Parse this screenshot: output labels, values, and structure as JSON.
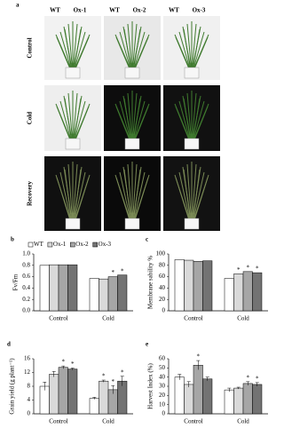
{
  "figure": {
    "panel": "a",
    "columns": [
      "WT",
      "Ox-1",
      "WT",
      "Ox-2",
      "WT",
      "Ox-3"
    ],
    "rows": [
      "Control",
      "Cold",
      "Recovery"
    ]
  },
  "chart_data": [
    {
      "type": "bar",
      "panel": "b",
      "ylabel": "Fv/Fm",
      "categories": [
        "Control",
        "Cold"
      ],
      "legend": "top",
      "ylim": [
        0,
        1
      ],
      "yticks": [
        {
          "value": 0,
          "label": "0.0"
        },
        0.2,
        0.4,
        0.6,
        0.8,
        {
          "value": 1,
          "label": "1.0"
        }
      ],
      "series": [
        {
          "name": "WT",
          "color": "#ffffff",
          "values": [
            0.8,
            0.57
          ],
          "annotations": [
            null,
            null
          ]
        },
        {
          "name": "Ox-1",
          "color": "#d9d9d9",
          "values": [
            0.81,
            0.56
          ],
          "annotations": [
            null,
            null
          ]
        },
        {
          "name": "Ox-2",
          "color": "#a6a6a6",
          "values": [
            0.81,
            0.6
          ],
          "annotations": [
            null,
            "*"
          ]
        },
        {
          "name": "Ox-3",
          "color": "#737373",
          "values": [
            0.81,
            0.63
          ],
          "annotations": [
            null,
            "*"
          ]
        }
      ]
    },
    {
      "type": "bar",
      "panel": "c",
      "ylabel": "Membrane sability %",
      "categories": [
        "Control",
        "Cold"
      ],
      "ylim": [
        0,
        100
      ],
      "yticks": [
        0,
        20,
        40,
        60,
        80,
        100
      ],
      "series": [
        {
          "name": "WT",
          "color": "#ffffff",
          "values": [
            90,
            57
          ],
          "annotations": [
            null,
            null
          ]
        },
        {
          "name": "Ox-1",
          "color": "#d9d9d9",
          "values": [
            89,
            65
          ],
          "annotations": [
            null,
            "*"
          ]
        },
        {
          "name": "Ox-2",
          "color": "#a6a6a6",
          "values": [
            87,
            69
          ],
          "annotations": [
            null,
            "*"
          ]
        },
        {
          "name": "Ox-3",
          "color": "#737373",
          "values": [
            88,
            67
          ],
          "annotations": [
            null,
            "*"
          ]
        }
      ]
    },
    {
      "type": "bar",
      "panel": "d",
      "ylabel": "Grain yield (g plant⁻¹)",
      "categories": [
        "Control",
        "Cold"
      ],
      "ylim": [
        0,
        16
      ],
      "yticks": [
        0,
        4,
        8,
        12,
        16
      ],
      "series": [
        {
          "name": "WT",
          "color": "#ffffff",
          "values": [
            8,
            4.5
          ],
          "errors": [
            1.2,
            0.3
          ],
          "annotations": [
            null,
            null
          ]
        },
        {
          "name": "Ox-1",
          "color": "#d9d9d9",
          "values": [
            11.5,
            9.5
          ],
          "errors": [
            0.8,
            0.3
          ],
          "annotations": [
            null,
            "*"
          ]
        },
        {
          "name": "Ox-2",
          "color": "#a6a6a6",
          "values": [
            13.5,
            7
          ],
          "errors": [
            0.4,
            1.2
          ],
          "annotations": [
            "*",
            "*"
          ]
        },
        {
          "name": "Ox-3",
          "color": "#737373",
          "values": [
            13,
            9.5
          ],
          "errors": [
            0.3,
            1.4
          ],
          "annotations": [
            "*",
            "*"
          ]
        }
      ]
    },
    {
      "type": "bar",
      "panel": "e",
      "ylabel": "Harvest Index (%)",
      "categories": [
        "Control",
        "Cold"
      ],
      "ylim": [
        0,
        60
      ],
      "yticks": [
        0,
        10,
        20,
        30,
        40,
        50,
        60
      ],
      "series": [
        {
          "name": "WT",
          "color": "#ffffff",
          "values": [
            40,
            26
          ],
          "errors": [
            3,
            2
          ],
          "annotations": [
            null,
            null
          ]
        },
        {
          "name": "Ox-1",
          "color": "#d9d9d9",
          "values": [
            32,
            28
          ],
          "errors": [
            3,
            1
          ],
          "annotations": [
            null,
            null
          ]
        },
        {
          "name": "Ox-2",
          "color": "#a6a6a6",
          "values": [
            53,
            33
          ],
          "errors": [
            5,
            2
          ],
          "annotations": [
            "*",
            "*"
          ]
        },
        {
          "name": "Ox-3",
          "color": "#737373",
          "values": [
            38,
            32
          ],
          "errors": [
            2,
            2
          ],
          "annotations": [
            null,
            "*"
          ]
        }
      ]
    }
  ]
}
